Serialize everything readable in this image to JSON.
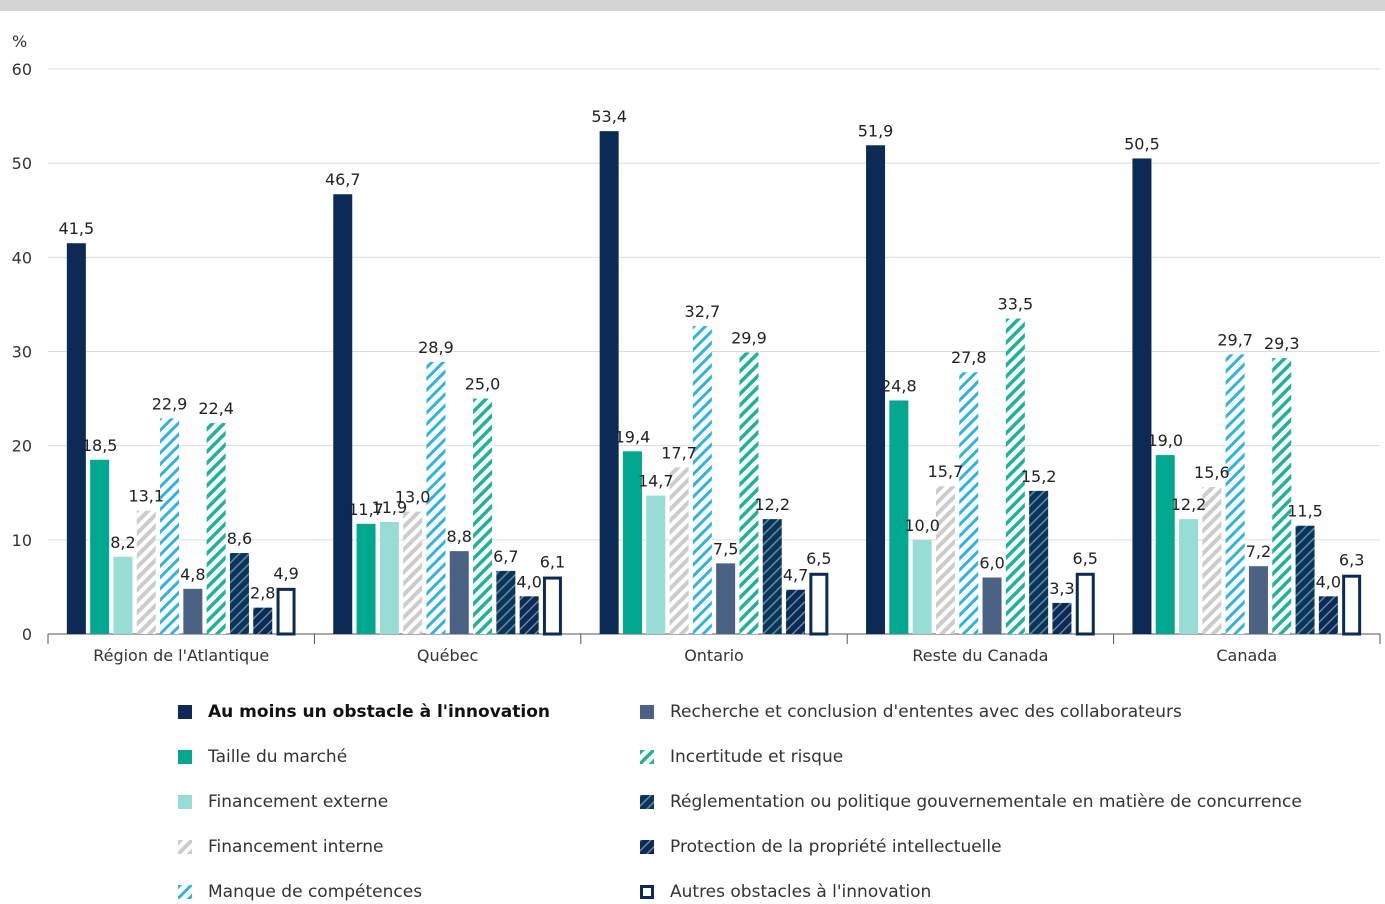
{
  "chart_data": {
    "type": "bar",
    "ylabel": "%",
    "ylim": [
      0,
      60
    ],
    "yticks": [
      "0",
      "10",
      "20",
      "30",
      "40",
      "50",
      "60"
    ],
    "categories": [
      "Région de l'Atlantique",
      "Québec",
      "Ontario",
      "Reste du Canada",
      "Canada"
    ],
    "series": [
      {
        "name": "Au moins un obstacle à l'innovation",
        "key": "any",
        "color": "#0b2a55",
        "fill": "solid",
        "values": [
          41.5,
          46.7,
          53.4,
          51.9,
          50.5
        ],
        "labels": [
          "41,5",
          "46,7",
          "53,4",
          "51,9",
          "50,5"
        ]
      },
      {
        "name": "Taille du marché",
        "key": "market",
        "color": "#00a88f",
        "fill": "solid",
        "values": [
          18.5,
          11.7,
          19.4,
          24.8,
          19.0
        ],
        "labels": [
          "18,5",
          "11,7",
          "19,4",
          "24,8",
          "19,0"
        ]
      },
      {
        "name": "Financement externe",
        "key": "extfin",
        "color": "#97ddd5",
        "fill": "solid",
        "values": [
          8.2,
          11.9,
          14.7,
          10.0,
          12.2
        ],
        "labels": [
          "8,2",
          "11,9",
          "14,7",
          "10,0",
          "12,2"
        ]
      },
      {
        "name": "Financement interne",
        "key": "intfin",
        "color": "#cccccc",
        "fill": "hatch",
        "values": [
          13.1,
          13.0,
          17.7,
          15.7,
          15.6
        ],
        "labels": [
          "13,1",
          "13,0",
          "17,7",
          "15,7",
          "15,6"
        ]
      },
      {
        "name": "Manque de compétences",
        "key": "skills",
        "color": "#2eb3e6",
        "fill": "hatch",
        "values": [
          22.9,
          28.9,
          32.7,
          27.8,
          29.7
        ],
        "labels": [
          "22,9",
          "28,9",
          "32,7",
          "27,8",
          "29,7"
        ]
      },
      {
        "name": "Recherche et conclusion d'ententes avec des collaborateurs",
        "key": "collab",
        "color": "#4a6283",
        "fill": "solid",
        "values": [
          4.8,
          8.8,
          7.5,
          6.0,
          7.2
        ],
        "labels": [
          "4,8",
          "8,8",
          "7,5",
          "6,0",
          "7,2"
        ]
      },
      {
        "name": "Incertitude et risque",
        "key": "risk",
        "color": "#1cb39a",
        "fill": "hatch",
        "values": [
          22.4,
          25.0,
          29.9,
          33.5,
          29.3
        ],
        "labels": [
          "22,4",
          "25,0",
          "29,9",
          "33,5",
          "29,3"
        ]
      },
      {
        "name": "Réglementation ou politique gouvernementale en matière de concurrence",
        "key": "regul",
        "color": "#0e3355",
        "fill": "darkhatch",
        "values": [
          8.6,
          6.7,
          12.2,
          15.2,
          11.5
        ],
        "labels": [
          "8,6",
          "6,7",
          "12,2",
          "15,2",
          "11,5"
        ]
      },
      {
        "name": "Protection de la propriété intellectuelle",
        "key": "ip",
        "color": "#0b2a55",
        "fill": "darkhatch",
        "values": [
          2.8,
          4.0,
          4.7,
          3.3,
          4.0
        ],
        "labels": [
          "2,8",
          "4,0",
          "4,7",
          "3,3",
          "4,0"
        ]
      },
      {
        "name": "Autres obstacles à l'innovation",
        "key": "other",
        "color": "#0b2a55",
        "fill": "outline",
        "values": [
          4.9,
          6.1,
          6.5,
          6.5,
          6.3
        ],
        "labels": [
          "4,9",
          "6,1",
          "6,5",
          "6,5",
          "6,3"
        ]
      }
    ],
    "legend_order": [
      "any",
      "collab",
      "market",
      "risk",
      "extfin",
      "regul",
      "intfin",
      "ip",
      "skills",
      "other"
    ],
    "grid": true,
    "legend_position": "bottom"
  }
}
